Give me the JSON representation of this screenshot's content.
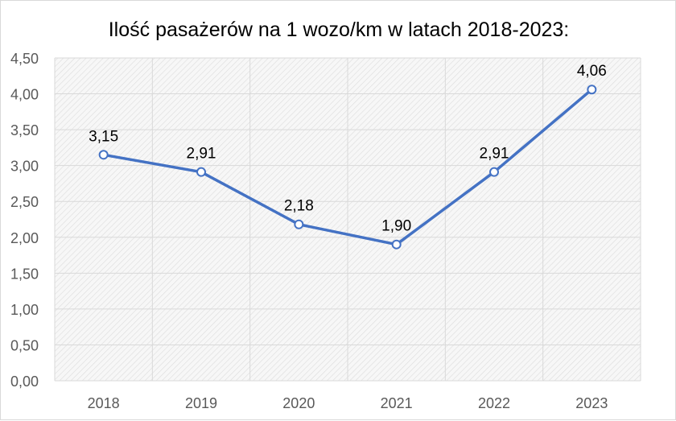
{
  "chart_data": {
    "type": "line",
    "title": "Ilość pasażerów na 1 wozo/km w latach 2018-2023:",
    "xlabel": "",
    "ylabel": "",
    "categories": [
      "2018",
      "2019",
      "2020",
      "2021",
      "2022",
      "2023"
    ],
    "values": [
      3.15,
      2.91,
      2.18,
      1.9,
      2.91,
      4.06
    ],
    "data_labels": [
      "3,15",
      "2,91",
      "2,18",
      "1,90",
      "2,91",
      "4,06"
    ],
    "ylim": [
      0,
      4.5
    ],
    "yticks": [
      0,
      0.5,
      1.0,
      1.5,
      2.0,
      2.5,
      3.0,
      3.5,
      4.0,
      4.5
    ],
    "ytick_labels": [
      "0,00",
      "0,50",
      "1,00",
      "1,50",
      "2,00",
      "2,50",
      "3,00",
      "3,50",
      "4,00",
      "4,50"
    ],
    "grid": true,
    "legend": "none",
    "colors": {
      "line": "#4472c4",
      "marker_fill": "#ffffff",
      "grid": "#d9d9d9",
      "plot_background": "#f2f2f2",
      "tick_text": "#595959",
      "data_label_text": "#000000"
    }
  }
}
